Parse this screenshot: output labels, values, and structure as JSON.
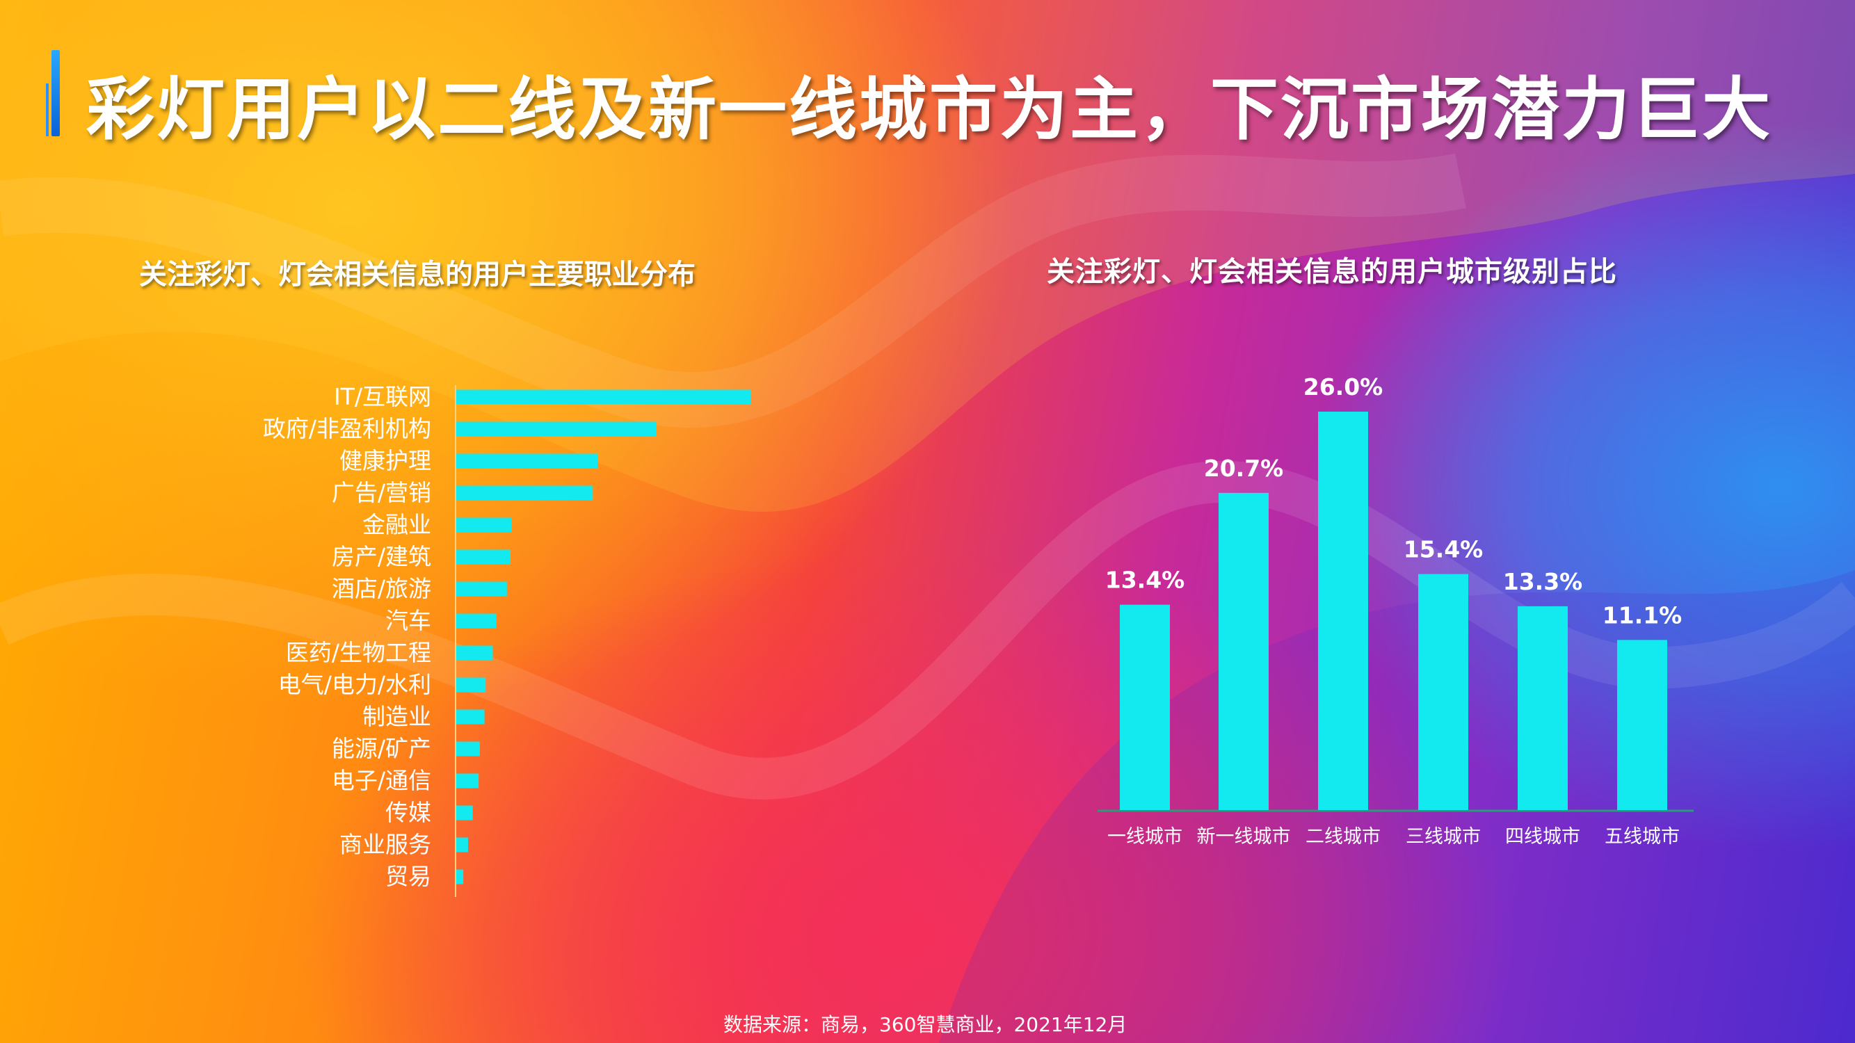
{
  "page": {
    "title": "彩灯用户以二线及新一线城市为主，下沉市场潜力巨大",
    "source": "数据来源：商易，360智慧商业，2021年12月",
    "bar_color": "#12eaf0"
  },
  "chart_data": [
    {
      "type": "bar",
      "orientation": "horizontal",
      "title": "关注彩灯、灯会相关信息的用户主要职业分布",
      "categories": [
        "IT/互联网",
        "政府/非盈利机构",
        "健康护理",
        "广告/营销",
        "金融业",
        "房产/建筑",
        "酒店/旅游",
        "汽车",
        "医药/生物工程",
        "电气/电力/水利",
        "制造业",
        "能源/矿产",
        "电子/通信",
        "传媒",
        "商业服务",
        "贸易"
      ],
      "values": [
        25.0,
        17.0,
        12.0,
        11.6,
        4.7,
        4.6,
        4.3,
        3.4,
        3.1,
        2.5,
        2.4,
        2.0,
        1.9,
        1.4,
        1.0,
        0.6
      ],
      "xlabel": "",
      "ylabel": "",
      "xlim": [
        0,
        25
      ],
      "grid": false
    },
    {
      "type": "bar",
      "orientation": "vertical",
      "title": "关注彩灯、灯会相关信息的用户城市级别占比",
      "categories": [
        "一线城市",
        "新一线城市",
        "二线城市",
        "三线城市",
        "四线城市",
        "五线城市"
      ],
      "values": [
        13.4,
        20.7,
        26.0,
        15.4,
        13.3,
        11.1
      ],
      "value_labels": [
        "13.4%",
        "20.7%",
        "26.0%",
        "15.4%",
        "13.3%",
        "11.1%"
      ],
      "xlabel": "",
      "ylabel": "",
      "ylim": [
        0,
        26
      ],
      "grid": false
    }
  ]
}
